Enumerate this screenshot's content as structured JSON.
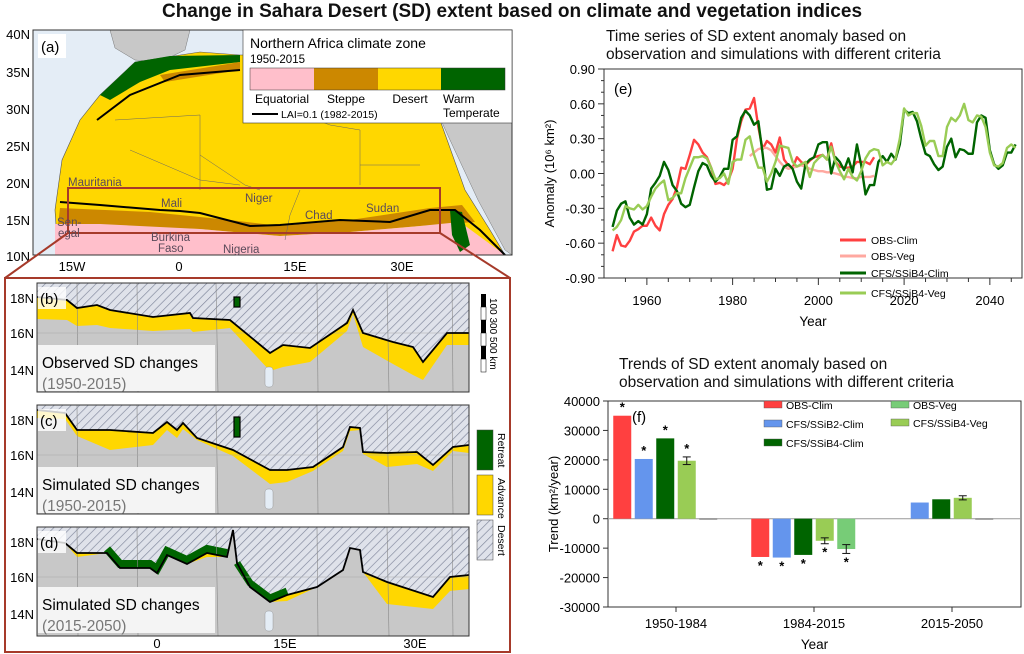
{
  "title": "Change in Sahara Desert (SD) extent based on climate and vegetation indices",
  "map_a": {
    "panel_label": "(a)",
    "lat_labels": [
      "40N",
      "35N",
      "30N",
      "25N",
      "20N",
      "15N",
      "10N"
    ],
    "lon_labels": [
      "15W",
      "0",
      "15E",
      "30E"
    ],
    "legend_title": "Northern Africa climate zone",
    "legend_period": "1950-2015",
    "zones": [
      {
        "label": "Equatorial",
        "color": "#ffbfcb"
      },
      {
        "label": "Steppe",
        "color": "#cc8800"
      },
      {
        "label": "Desert",
        "color": "#ffd700"
      },
      {
        "label": "Warm",
        "label2": "Temperate",
        "color": "#006400"
      }
    ],
    "lai_label": "LAI=0.1 (1982-2015)",
    "countries": [
      "Mauritania",
      "Mali",
      "Niger",
      "Chad",
      "Sudan",
      "Sen-",
      "egal",
      "Burkina",
      "Faso",
      "Nigeria"
    ]
  },
  "maps_bcd": {
    "lat_labels": [
      "18N",
      "16N",
      "14N"
    ],
    "lon_labels": [
      "0",
      "15E",
      "30E"
    ],
    "panels": [
      {
        "label": "(b)",
        "title": "Observed SD changes",
        "period": "(1950-2015)"
      },
      {
        "label": "(c)",
        "title": "Simulated SD changes",
        "period": "(1950-2015)"
      },
      {
        "label": "(d)",
        "title": "Simulated SD changes",
        "period": "(2015-2050)"
      }
    ],
    "scale_bar": "100  300  500 km",
    "legend": [
      {
        "label": "Retreat",
        "color": "#006400"
      },
      {
        "label": "Advance",
        "color": "#ffd700"
      },
      {
        "label": "Desert",
        "pattern": "hatched"
      }
    ]
  },
  "chart_data": [
    {
      "type": "line",
      "panel_label": "(e)",
      "title": "Time series of SD extent anomaly based on observation and simulations with different criteria",
      "title_lines": [
        "Time series of SD extent anomaly based on",
        "observation and simulations with different criteria"
      ],
      "xlabel": "Year",
      "ylabel": "Anomaly (10⁶ km²)",
      "xlim": [
        1950,
        2047.5
      ],
      "ylim": [
        -0.9,
        0.9
      ],
      "yticks": [
        "0.90",
        "0.60",
        "0.30",
        "0.00",
        "-0.30",
        "-0.60",
        "-0.90"
      ],
      "xticks": [
        "1960",
        "1980",
        "2000",
        "2020",
        "2040"
      ],
      "legend_position": "bottom-right",
      "series": [
        {
          "name": "OBS-Clim",
          "color": "#ff4040",
          "start": 1952,
          "values": [
            -0.67,
            -0.53,
            -0.62,
            -0.63,
            -0.58,
            -0.5,
            -0.48,
            -0.45,
            -0.45,
            -0.38,
            -0.45,
            -0.49,
            -0.35,
            -0.27,
            -0.22,
            -0.12,
            0.05,
            0.04,
            0.16,
            0.29,
            0.25,
            0.18,
            0.14,
            0.05,
            -0.09,
            -0.08,
            -0.1,
            -0.06,
            0.04,
            0.3,
            0.45,
            0.55,
            0.56,
            0.65,
            0.4,
            0.21,
            0.28,
            0.25,
            0.18,
            0.31,
            0.12,
            0.07,
            0.05,
            0.14,
            0.1,
            0.07,
            0.11,
            0.14,
            0.15,
            0.16,
            0.12,
            0.26,
            0.1,
            0.06,
            0.05,
            0.05,
            0.06,
            0.1,
            0.1,
            0.1,
            0.08,
            0.14
          ]
        },
        {
          "name": "OBS-Veg",
          "color": "#ffa8a0",
          "start": 1984,
          "values": [
            0.15,
            0.18,
            0.21,
            0.22,
            0.22,
            0.2,
            0.15,
            0.1,
            0.06,
            0.04,
            0.05,
            0.06,
            0.07,
            0.06,
            0.04,
            0.03,
            0.02,
            0.02,
            0.01,
            0.01,
            0.0,
            -0.01,
            -0.03,
            -0.03,
            -0.04,
            -0.04,
            -0.03,
            -0.03,
            -0.03,
            -0.02
          ]
        },
        {
          "name": "CFS/SSiB4-Clim",
          "color": "#006400",
          "start": 1952,
          "values": [
            -0.46,
            -0.32,
            -0.26,
            -0.24,
            -0.38,
            -0.44,
            -0.41,
            -0.44,
            -0.35,
            -0.13,
            -0.08,
            -0.02,
            0.1,
            0.03,
            -0.1,
            -0.15,
            -0.26,
            -0.29,
            -0.27,
            -0.12,
            0.02,
            0.09,
            0.07,
            -0.02,
            -0.07,
            -0.03,
            0.04,
            0.04,
            0.29,
            0.32,
            0.48,
            0.54,
            0.5,
            0.42,
            0.45,
            0.17,
            -0.14,
            -0.13,
            0.04,
            -0.02,
            0.06,
            0.08,
            0.04,
            -0.07,
            -0.13,
            0.08,
            0.12,
            0.14,
            0.25,
            0.27,
            0.27,
            0.0,
            0.14,
            0.1,
            0.03,
            0.13,
            0.01,
            0.25,
            0.07,
            -0.18,
            -0.1,
            -0.1,
            0.1,
            0.15,
            0.1,
            0.17,
            0.12,
            0.25,
            0.55,
            0.52,
            0.53,
            0.45,
            0.3,
            0.17,
            0.15,
            0.08,
            0.03,
            0.06,
            0.23,
            0.3,
            0.14,
            0.21,
            0.2,
            0.17,
            0.17,
            0.44,
            0.5,
            0.48,
            0.2,
            0.08,
            0.04,
            0.07,
            0.18,
            0.18,
            0.25
          ]
        },
        {
          "name": "CFS/SSiB4-Veg",
          "color": "#99cc55",
          "start": 1952,
          "values": [
            -0.49,
            -0.46,
            -0.4,
            -0.28,
            -0.3,
            -0.31,
            -0.27,
            -0.31,
            -0.28,
            -0.2,
            -0.13,
            -0.09,
            -0.06,
            -0.23,
            -0.21,
            -0.17,
            -0.17,
            -0.04,
            0.05,
            0.14,
            0.14,
            0.15,
            0.13,
            0.05,
            -0.05,
            -0.04,
            0.0,
            -0.09,
            0.1,
            0.12,
            0.12,
            0.29,
            0.32,
            0.16,
            0.05,
            0.05,
            -0.07,
            0.0,
            0.1,
            0.24,
            0.23,
            0.22,
            0.1,
            0.06,
            0.08,
            0.1,
            -0.03,
            0.09,
            0.13,
            0.16,
            0.12,
            0.23,
            0.1,
            0.02,
            -0.05,
            0.04,
            -0.03,
            -0.06,
            0.02,
            0.13,
            0.19,
            0.21,
            0.2,
            0.07,
            0.1,
            0.08,
            0.13,
            0.3,
            0.56,
            0.5,
            0.52,
            0.52,
            0.41,
            0.24,
            0.28,
            0.28,
            0.15,
            0.15,
            0.4,
            0.48,
            0.45,
            0.5,
            0.6,
            0.46,
            0.44,
            0.5,
            0.49,
            0.4,
            0.18,
            0.07,
            0.06,
            0.09,
            0.22,
            0.25,
            0.22
          ]
        }
      ]
    },
    {
      "type": "bar",
      "panel_label": "(f)",
      "title": "Trends of SD extent anomaly based on observation and simulations with different criteria",
      "title_lines": [
        "Trends of SD extent anomaly based on",
        "observation and simulations with different criteria"
      ],
      "xlabel": "Year",
      "ylabel": "Trend (km²/year)",
      "ylim": [
        -30000,
        40000
      ],
      "yticks": [
        "40000",
        "30000",
        "20000",
        "10000",
        "0",
        "-10000",
        "-20000",
        "-30000"
      ],
      "categories": [
        "1950-1984",
        "1984-2015",
        "2015-2050"
      ],
      "legend_position": "top-right",
      "significance_marker": "*",
      "series": [
        {
          "name": "OBS-Clim",
          "color": "#ff4040",
          "values": [
            35000,
            -13000,
            null
          ],
          "significant": [
            true,
            true,
            false
          ]
        },
        {
          "name": "CFS/SSiB2-Clim",
          "color": "#6495ed",
          "values": [
            20300,
            -13200,
            5500
          ],
          "significant": [
            true,
            true,
            false
          ]
        },
        {
          "name": "CFS/SSiB4-Clim",
          "color": "#006400",
          "values": [
            27300,
            -12300,
            6600
          ],
          "significant": [
            true,
            true,
            false
          ]
        },
        {
          "name": "CFS/SSiB4-Veg",
          "color": "#99cc55",
          "values": [
            19700,
            -7500,
            7100
          ],
          "error": [
            1300,
            1000,
            700
          ],
          "significant": [
            true,
            true,
            false
          ]
        },
        {
          "name": "OBS-Veg",
          "color": "#77cc77",
          "values": [
            0,
            -10300,
            0
          ],
          "error": [
            null,
            1500,
            null
          ],
          "significant": [
            false,
            true,
            false
          ]
        }
      ]
    }
  ]
}
